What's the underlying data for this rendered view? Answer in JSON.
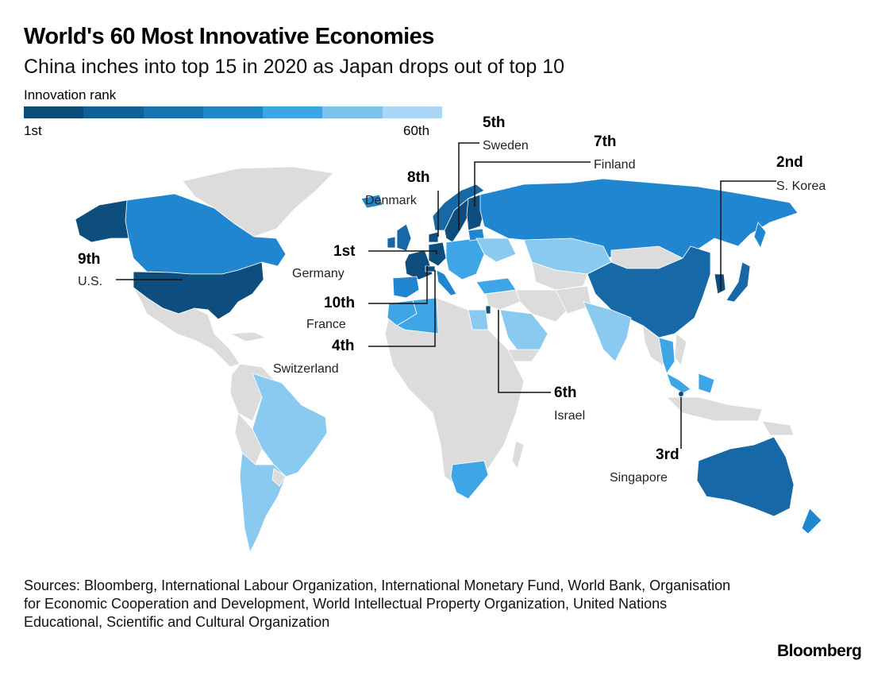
{
  "header": {
    "title": "World's 60 Most Innovative Economies",
    "subtitle": "China inches into top 15 in 2020 as Japan drops out of top 10"
  },
  "legend": {
    "title": "Innovation rank",
    "min_label": "1st",
    "max_label": "60th",
    "colors": [
      "#0c4c7a",
      "#125f96",
      "#1773b0",
      "#1f87c8",
      "#3aa6e6",
      "#7bc2ef",
      "#a9d7f5"
    ]
  },
  "colors": {
    "not_ranked": "#dcdcdc",
    "rank_1_10": "#0d4e7e",
    "rank_11_20": "#1668a6",
    "rank_21_30": "#1f86cf",
    "rank_31_45": "#3ea6e6",
    "rank_46_60": "#8ac9f0"
  },
  "callouts": [
    {
      "rank": "1st",
      "country": "Germany"
    },
    {
      "rank": "2nd",
      "country": "S. Korea"
    },
    {
      "rank": "3rd",
      "country": "Singapore"
    },
    {
      "rank": "4th",
      "country": "Switzerland"
    },
    {
      "rank": "5th",
      "country": "Sweden"
    },
    {
      "rank": "6th",
      "country": "Israel"
    },
    {
      "rank": "7th",
      "country": "Finland"
    },
    {
      "rank": "8th",
      "country": "Denmark"
    },
    {
      "rank": "9th",
      "country": "U.S."
    },
    {
      "rank": "10th",
      "country": "France"
    }
  ],
  "footer": {
    "sources": "Sources: Bloomberg, International Labour Organization, International Monetary Fund, World Bank, Organisation for Economic Cooperation and Development, World Intellectual Property Organization, United Nations Educational, Scientific and Cultural Organization",
    "brand": "Bloomberg"
  }
}
